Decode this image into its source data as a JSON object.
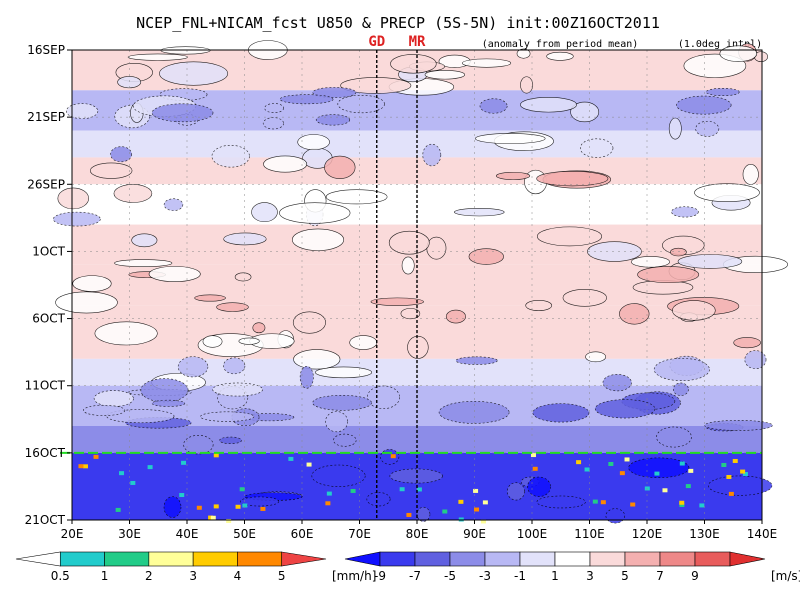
{
  "chart_data": {
    "type": "heatmap",
    "title": "NCEP_FNL+NICAM_fcst U850 & PRECP (5S-5N) init:00Z16OCT2011",
    "subtitle": "(anomaly from period mean)",
    "interp_note": "(1.0deg intpl)",
    "x_ticks": [
      "20E",
      "30E",
      "40E",
      "50E",
      "60E",
      "70E",
      "80E",
      "90E",
      "100E",
      "110E",
      "120E",
      "130E",
      "140E"
    ],
    "x_range": [
      20,
      140
    ],
    "y_ticks": [
      "16SEP",
      "21SEP",
      "26SEP",
      "1OCT",
      "6OCT",
      "11OCT",
      "16OCT",
      "21OCT"
    ],
    "y_range_days_from_16SEP": [
      0,
      35
    ],
    "init_date": "16OCT",
    "init_color": "#22dd22",
    "markers": [
      {
        "label": "GD",
        "lon": 73
      },
      {
        "label": "MR",
        "lon": 80
      }
    ],
    "marker_label_color": "#dd2222",
    "u850_bands": [
      {
        "day": 0,
        "value": 3
      },
      {
        "day": 3,
        "value": -2
      },
      {
        "day": 6,
        "value": -1
      },
      {
        "day": 8,
        "value": 3
      },
      {
        "day": 10,
        "value": 1
      },
      {
        "day": 13,
        "value": 3
      },
      {
        "day": 16,
        "value": 4
      },
      {
        "day": 19,
        "value": 4
      },
      {
        "day": 21,
        "value": 3
      },
      {
        "day": 23,
        "value": -1
      },
      {
        "day": 25,
        "value": -3
      },
      {
        "day": 28,
        "value": -4
      },
      {
        "day": 30,
        "value": -8
      },
      {
        "day": 35,
        "value": -8
      }
    ]
  },
  "colorbars": {
    "precip": {
      "ticks": [
        "0.5",
        "1",
        "2",
        "3",
        "4",
        "5"
      ],
      "unit": "[mm/h]",
      "colors": [
        "#ffffff",
        "#22cccc",
        "#22cc88",
        "#ffff99",
        "#ffcc00",
        "#ff8800",
        "#ee4444"
      ]
    },
    "u850": {
      "ticks": [
        "-9",
        "-7",
        "-5",
        "-3",
        "-1",
        "1",
        "3",
        "5",
        "7",
        "9"
      ],
      "unit": "[m/s]",
      "colors": [
        "#1010ff",
        "#3a3aee",
        "#6060e0",
        "#8c8ce8",
        "#b8b8f4",
        "#e2e2fa",
        "#ffffff",
        "#fadada",
        "#f4b0b0",
        "#ee8888",
        "#e85c5c",
        "#e03030"
      ]
    }
  }
}
